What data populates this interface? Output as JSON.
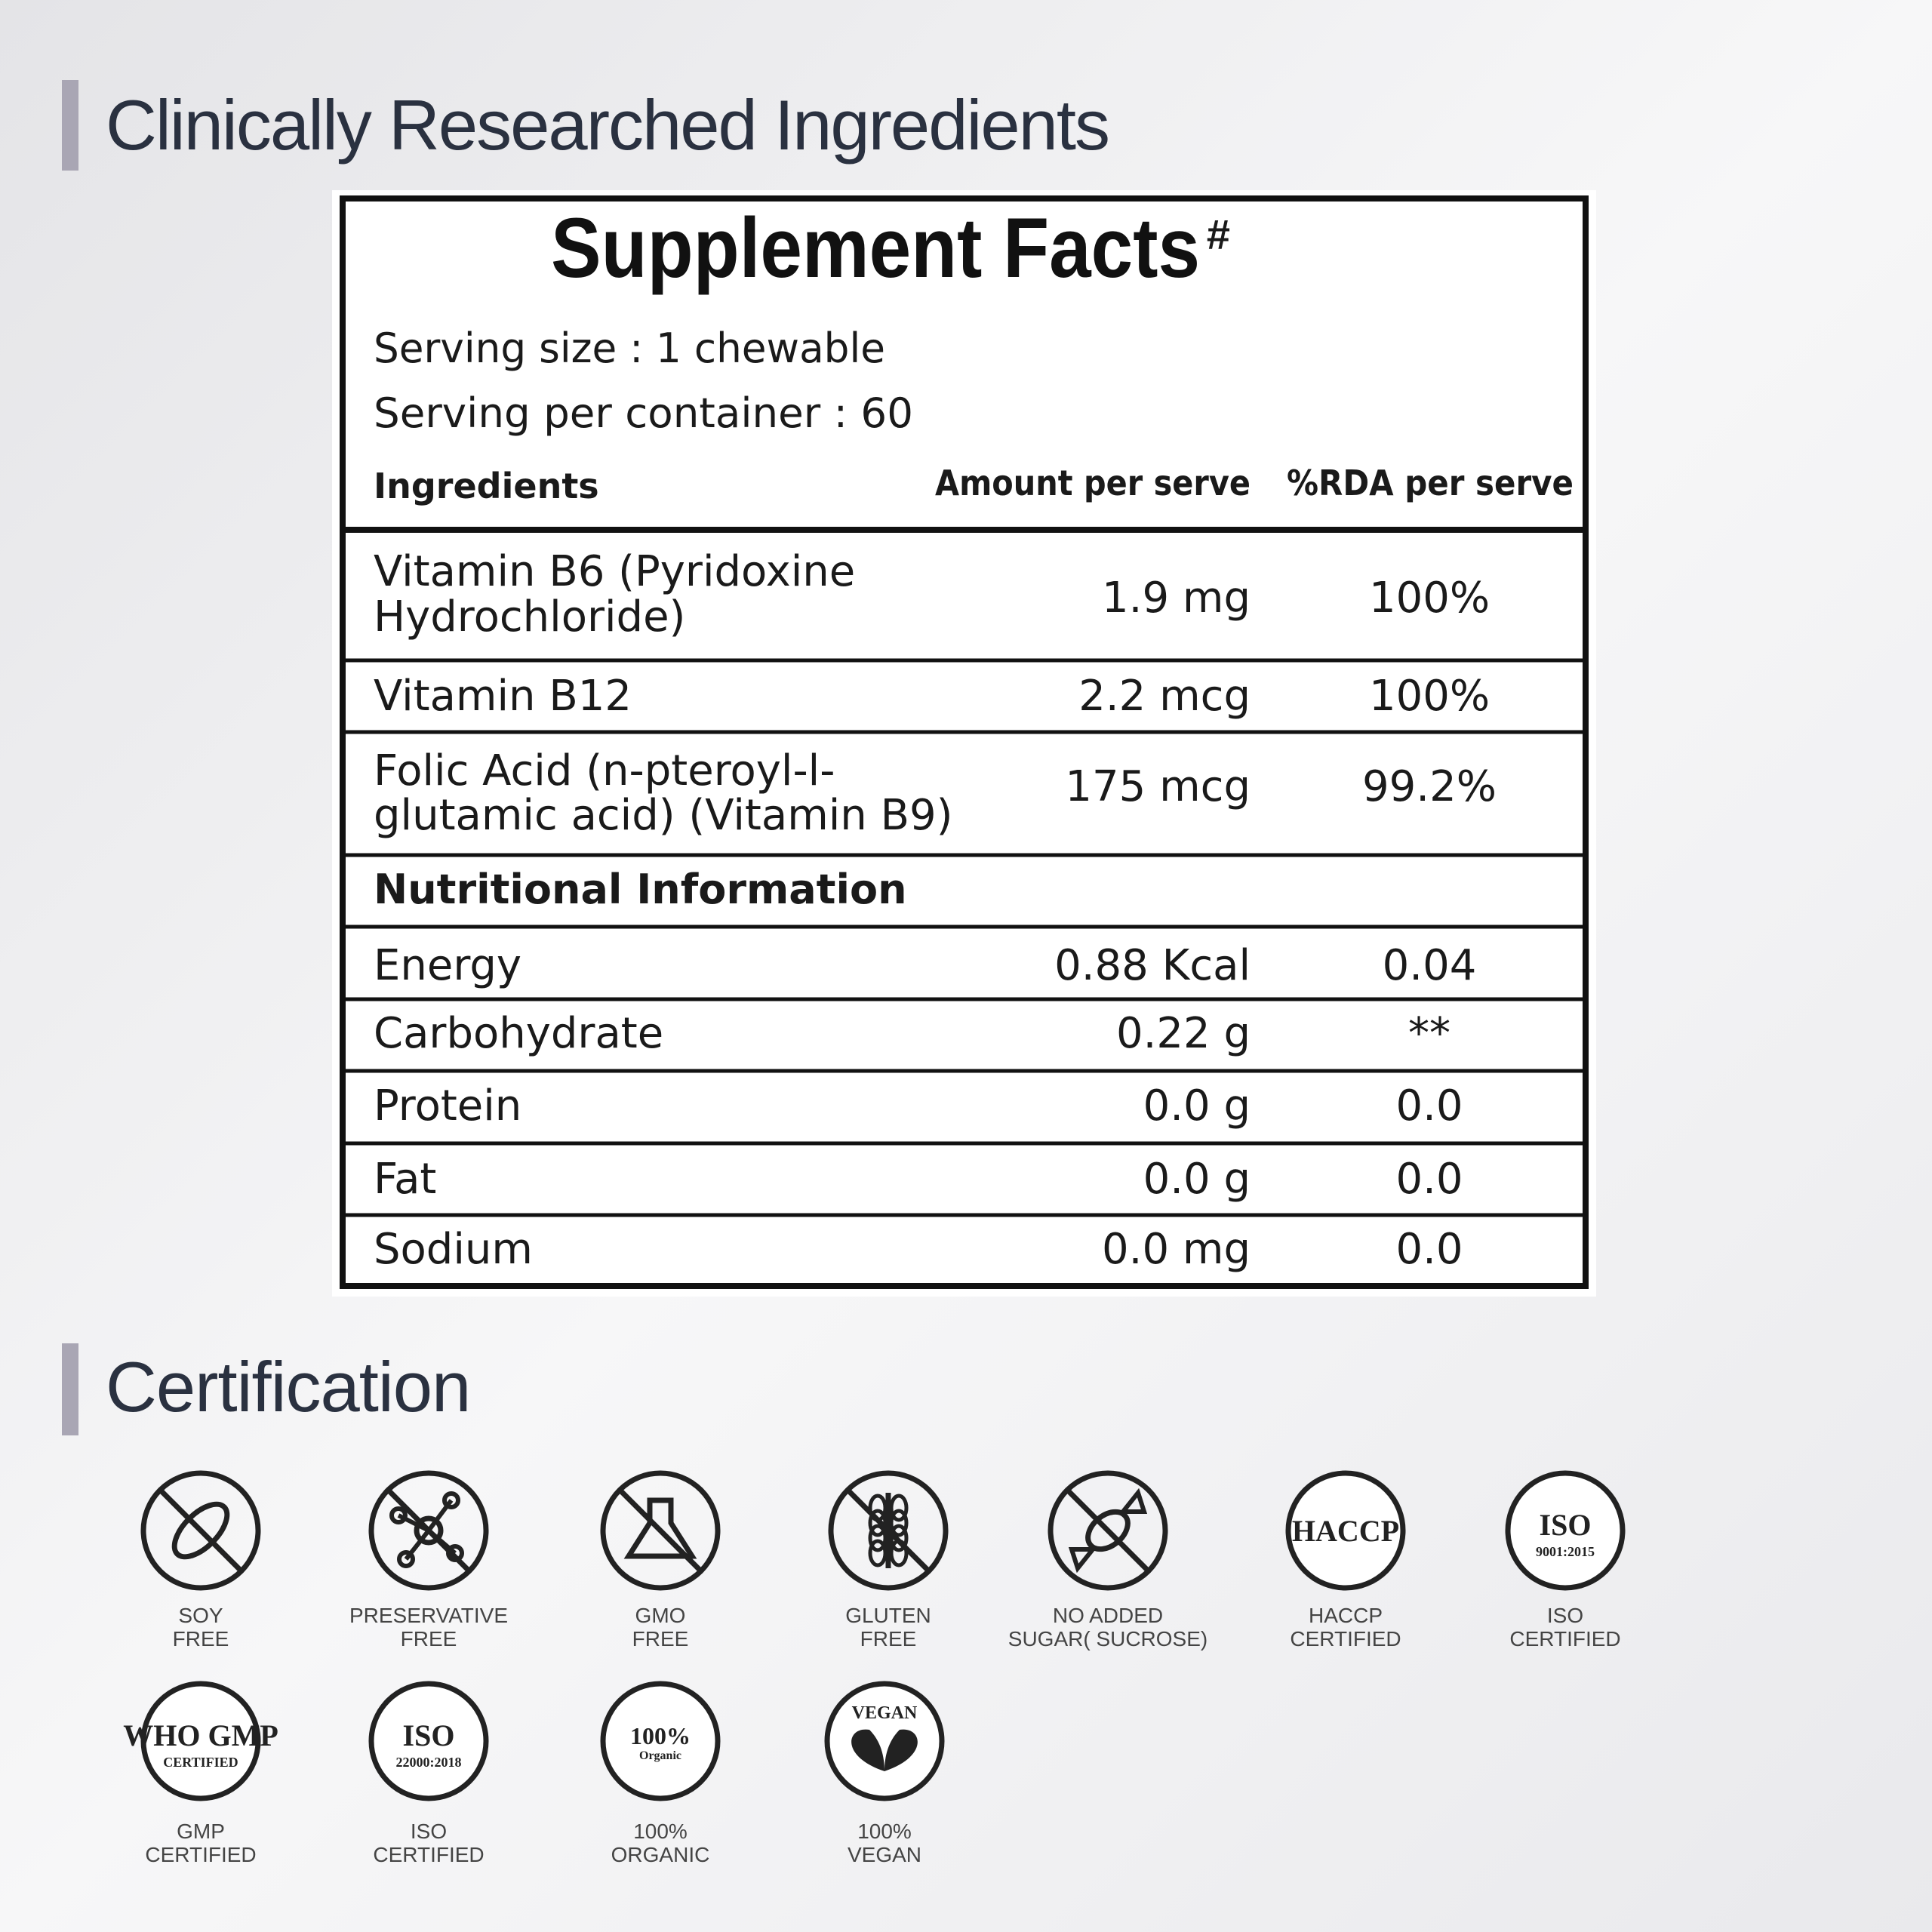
{
  "header": {
    "title": "Clinically Researched Ingredients"
  },
  "table": {
    "title": "Supplement Facts",
    "title_mark": "#",
    "serving_size": "Serving size : 1 chewable",
    "servings_per_container": "Serving per container : 60",
    "columns": [
      "Ingredients",
      "Amount per serve",
      "%RDA per serve"
    ],
    "rows": [
      {
        "name_lines": [
          "Vitamin B6 (Pyridoxine",
          "Hydrochloride)"
        ],
        "amount": "1.9 mg",
        "rda": "100%"
      },
      {
        "name_lines": [
          "Vitamin B12"
        ],
        "amount": "2.2 mcg",
        "rda": "100%"
      },
      {
        "name_lines": [
          "Folic Acid (n-pteroyl-l-",
          "glutamic acid) (Vitamin B9)"
        ],
        "amount": "175 mcg",
        "rda": "99.2%"
      }
    ],
    "section": "Nutritional Information",
    "nutrition": [
      {
        "name": "Energy",
        "amount": "0.88 Kcal",
        "rda": "0.04"
      },
      {
        "name": "Carbohydrate",
        "amount": "0.22 g",
        "rda": "**"
      },
      {
        "name": "Protein",
        "amount": "0.0 g",
        "rda": "0.0"
      },
      {
        "name": "Fat",
        "amount": "0.0 g",
        "rda": "0.0"
      },
      {
        "name": "Sodium",
        "amount": "0.0 mg",
        "rda": "0.0"
      }
    ]
  },
  "certification": {
    "title": "Certification",
    "badges": [
      {
        "label_lines": [
          "SOY",
          "FREE"
        ],
        "icon_text": []
      },
      {
        "label_lines": [
          "PRESERVATIVE",
          "FREE"
        ],
        "icon_text": []
      },
      {
        "label_lines": [
          "GMO",
          "FREE"
        ],
        "icon_text": []
      },
      {
        "label_lines": [
          "GLUTEN",
          "FREE"
        ],
        "icon_text": []
      },
      {
        "label_lines": [
          "NO ADDED",
          "SUGAR( SUCROSE)"
        ],
        "icon_text": []
      },
      {
        "label_lines": [
          "HACCP",
          "CERTIFIED"
        ],
        "icon_text": [
          "HACCP"
        ]
      },
      {
        "label_lines": [
          "ISO",
          "CERTIFIED"
        ],
        "icon_text": [
          "ISO",
          "9001:2015"
        ]
      },
      {
        "label_lines": [
          "GMP",
          "CERTIFIED"
        ],
        "icon_text": [
          "WHO GMP",
          "CERTIFIED"
        ]
      },
      {
        "label_lines": [
          "ISO",
          "CERTIFIED"
        ],
        "icon_text": [
          "ISO",
          "22000:2018"
        ]
      },
      {
        "label_lines": [
          "100%",
          "ORGANIC"
        ],
        "icon_text": [
          "100%",
          "Organic"
        ]
      },
      {
        "label_lines": [
          "100%",
          "VEGAN"
        ],
        "icon_text": [
          "VEGAN"
        ]
      }
    ]
  }
}
